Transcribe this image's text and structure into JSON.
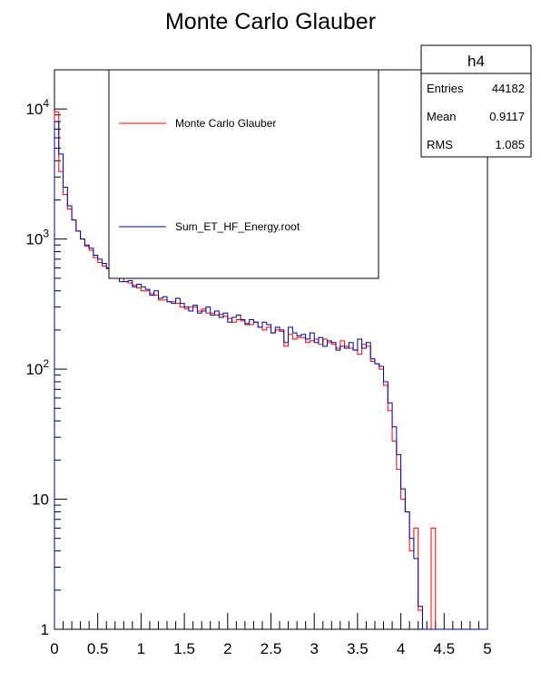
{
  "chart_data": {
    "type": "line",
    "title": "Monte Carlo Glauber",
    "xlabel": "",
    "ylabel": "",
    "xlim": [
      0,
      5
    ],
    "ylim": [
      1,
      20000
    ],
    "yscale": "log",
    "grid": false,
    "legend_position": "top-center",
    "x_tick_labels": [
      "0",
      "0.5",
      "1",
      "1.5",
      "2",
      "2.5",
      "3",
      "3.5",
      "4",
      "4.5",
      "5"
    ],
    "x_tick_values": [
      0,
      0.5,
      1,
      1.5,
      2,
      2.5,
      3,
      3.5,
      4,
      4.5,
      5
    ],
    "y_tick_values": [
      1,
      10,
      100,
      1000,
      10000
    ],
    "y_tick_labels": [
      {
        "base": "1",
        "exp": ""
      },
      {
        "base": "10",
        "exp": ""
      },
      {
        "base": "10",
        "exp": "2"
      },
      {
        "base": "10",
        "exp": "3"
      },
      {
        "base": "10",
        "exp": "4"
      }
    ],
    "bin_width": 0.05,
    "series": [
      {
        "name": "Monte Carlo Glauber",
        "color": "#ff0000",
        "values": [
          9500,
          3700,
          2100,
          1700,
          1400,
          1150,
          1000,
          880,
          800,
          720,
          660,
          620,
          580,
          550,
          530,
          500,
          480,
          470,
          460,
          450,
          430,
          410,
          390,
          380,
          370,
          350,
          340,
          335,
          330,
          320,
          310,
          300,
          295,
          290,
          285,
          275,
          270,
          265,
          260,
          255,
          250,
          240,
          235,
          230,
          225,
          220,
          215,
          210,
          205,
          200,
          195,
          190,
          185,
          180,
          175,
          170,
          165,
          160,
          155,
          150,
          150,
          145,
          140,
          135,
          130,
          125,
          120,
          115,
          110,
          105,
          100,
          95,
          90,
          85,
          80,
          75,
          70,
          60,
          50,
          40,
          30,
          20,
          8,
          6,
          3,
          0,
          0,
          6,
          0,
          0,
          0,
          0,
          0,
          0,
          0,
          0,
          0,
          0,
          0,
          0
        ],
        "render_values": [
          9500,
          3300,
          2200,
          1700,
          1400,
          1150,
          1000,
          880,
          820,
          720,
          660,
          620,
          590,
          550,
          530,
          500,
          470,
          460,
          440,
          420,
          400,
          400,
          380,
          370,
          340,
          340,
          330,
          330,
          320,
          300,
          290,
          300,
          300,
          280,
          290,
          270,
          270,
          260,
          265,
          255,
          245,
          230,
          240,
          235,
          225,
          220,
          230,
          210,
          200,
          210,
          190,
          200,
          195,
          150,
          185,
          170,
          175,
          175,
          160,
          165,
          170,
          155,
          170,
          160,
          155,
          145,
          165,
          150,
          145,
          140,
          130,
          155,
          150,
          115,
          110,
          100,
          75,
          48,
          28,
          17,
          10,
          8,
          4,
          6,
          1.4,
          1,
          1,
          6,
          0,
          0,
          0,
          0,
          0,
          0,
          0,
          0,
          0,
          0,
          0,
          0
        ]
      },
      {
        "name": "Sum_ET_HF_Energy.root",
        "color": "#000099",
        "values": [
          8000,
          4200,
          2200,
          1750,
          1450,
          1200,
          1050,
          900,
          820,
          740,
          680,
          630,
          590,
          560,
          540,
          510,
          480,
          470,
          460,
          450,
          440,
          420,
          400,
          390,
          380,
          360,
          350,
          345,
          340,
          330,
          320,
          310,
          305,
          300,
          295,
          285,
          280,
          275,
          270,
          265,
          260,
          250,
          245,
          240,
          235,
          230,
          225,
          220,
          215,
          210,
          205,
          200,
          195,
          190,
          185,
          180,
          175,
          170,
          165,
          160,
          160,
          155,
          150,
          145,
          140,
          135,
          130,
          125,
          120,
          115,
          110,
          105,
          100,
          95,
          90,
          85,
          80,
          70,
          60,
          45,
          35,
          22,
          9,
          5,
          4,
          0,
          0,
          0,
          0,
          0,
          0,
          0,
          0,
          0,
          0,
          0,
          0,
          0,
          0,
          0
        ],
        "render_values": [
          8000,
          4500,
          2500,
          1800,
          1400,
          1150,
          1000,
          900,
          850,
          750,
          700,
          650,
          600,
          560,
          520,
          470,
          470,
          480,
          430,
          450,
          430,
          410,
          370,
          400,
          350,
          360,
          330,
          320,
          350,
          320,
          300,
          280,
          310,
          270,
          280,
          300,
          260,
          280,
          250,
          270,
          230,
          250,
          260,
          240,
          220,
          240,
          230,
          210,
          230,
          220,
          190,
          210,
          200,
          160,
          210,
          190,
          180,
          185,
          170,
          190,
          160,
          175,
          150,
          165,
          160,
          140,
          150,
          145,
          160,
          140,
          170,
          145,
          160,
          120,
          110,
          105,
          80,
          55,
          36,
          22,
          12,
          8,
          5,
          3.5,
          1.5,
          1,
          1,
          1,
          0,
          0,
          0,
          0,
          0,
          0,
          0,
          0,
          0,
          0,
          0,
          0
        ]
      }
    ],
    "stats": {
      "name": "h4",
      "rows": [
        {
          "label": "Entries",
          "value": "44182"
        },
        {
          "label": "Mean",
          "value": "0.9117"
        },
        {
          "label": "RMS",
          "value": "1.085"
        }
      ]
    }
  }
}
